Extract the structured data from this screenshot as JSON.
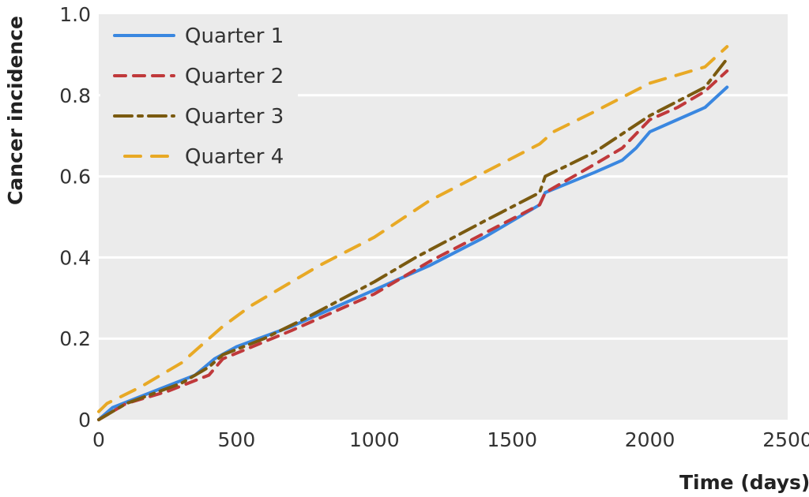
{
  "chart_data": {
    "type": "line",
    "title": "",
    "xlabel": "Time (days)",
    "ylabel": "Cancer incidence",
    "xlim": [
      0,
      2500
    ],
    "ylim": [
      0,
      1.0
    ],
    "xticks": [
      0,
      500,
      1000,
      1500,
      2000,
      2500
    ],
    "xtick_labels": [
      "0",
      "500",
      "1000",
      "1500",
      "2000",
      "2500"
    ],
    "yticks": [
      0,
      0.2,
      0.4,
      0.6,
      0.8,
      1.0
    ],
    "ytick_labels": [
      "0",
      "0.2",
      "0.4",
      "0.6",
      "0.8",
      "1.0"
    ],
    "grid": "horizontal",
    "legend_position": "top-left",
    "series": [
      {
        "name": "Quarter 1",
        "color": "#3a87e0",
        "style": "solid",
        "x": [
          0,
          50,
          200,
          350,
          420,
          500,
          700,
          800,
          1000,
          1200,
          1400,
          1600,
          1620,
          1800,
          1900,
          1950,
          2000,
          2100,
          2200,
          2280
        ],
        "y": [
          0,
          0.03,
          0.07,
          0.11,
          0.15,
          0.18,
          0.23,
          0.26,
          0.32,
          0.38,
          0.45,
          0.53,
          0.56,
          0.61,
          0.64,
          0.67,
          0.71,
          0.74,
          0.77,
          0.82
        ]
      },
      {
        "name": "Quarter 2",
        "color": "#c0393b",
        "style": "dashed",
        "x": [
          0,
          100,
          250,
          400,
          450,
          700,
          1000,
          1200,
          1400,
          1600,
          1620,
          1800,
          1900,
          2000,
          2100,
          2200,
          2280
        ],
        "y": [
          0,
          0.04,
          0.07,
          0.11,
          0.15,
          0.22,
          0.31,
          0.39,
          0.46,
          0.53,
          0.56,
          0.63,
          0.67,
          0.74,
          0.77,
          0.81,
          0.86
        ]
      },
      {
        "name": "Quarter 3",
        "color": "#7a5a10",
        "style": "dashdot",
        "x": [
          0,
          100,
          300,
          400,
          450,
          600,
          750,
          1000,
          1150,
          1400,
          1600,
          1620,
          1800,
          2000,
          2200,
          2280
        ],
        "y": [
          0,
          0.04,
          0.09,
          0.13,
          0.16,
          0.2,
          0.25,
          0.34,
          0.4,
          0.49,
          0.56,
          0.6,
          0.66,
          0.75,
          0.82,
          0.89
        ]
      },
      {
        "name": "Quarter 4",
        "color": "#e8a925",
        "style": "longdash",
        "x": [
          0,
          30,
          150,
          300,
          400,
          450,
          550,
          800,
          1000,
          1200,
          1400,
          1600,
          1650,
          1800,
          2000,
          2200,
          2280
        ],
        "y": [
          0.02,
          0.04,
          0.08,
          0.14,
          0.2,
          0.23,
          0.28,
          0.38,
          0.45,
          0.54,
          0.61,
          0.68,
          0.71,
          0.76,
          0.83,
          0.87,
          0.92
        ]
      }
    ]
  }
}
